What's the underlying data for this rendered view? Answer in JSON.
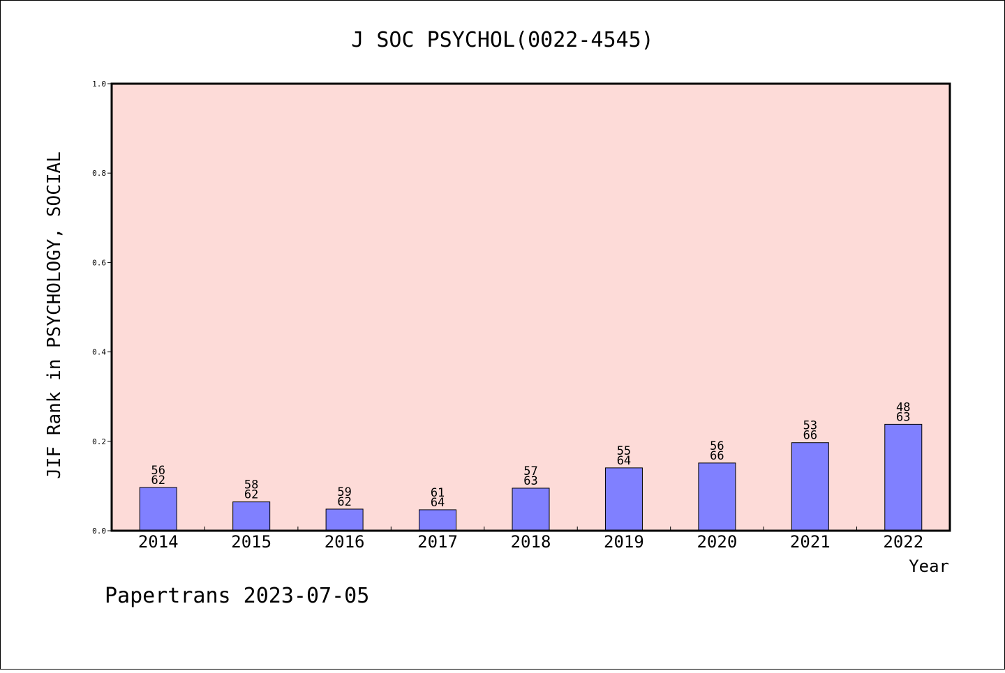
{
  "chart_data": {
    "type": "bar",
    "title": "J SOC PSYCHOL(0022-4545)",
    "xlabel": "Year",
    "ylabel": "JIF Rank in PSYCHOLOGY, SOCIAL",
    "ylim": [
      0,
      1.0
    ],
    "yticks": [
      "0.0",
      "0.2",
      "0.4",
      "0.6",
      "0.8",
      "1.0"
    ],
    "categories": [
      "2014",
      "2015",
      "2016",
      "2017",
      "2018",
      "2019",
      "2020",
      "2021",
      "2022"
    ],
    "values": [
      0.0968,
      0.0645,
      0.0484,
      0.0469,
      0.0952,
      0.1406,
      0.1515,
      0.197,
      0.2381
    ],
    "rank_labels": [
      "56",
      "58",
      "59",
      "61",
      "57",
      "55",
      "56",
      "53",
      "48"
    ],
    "total_labels": [
      "62",
      "62",
      "62",
      "64",
      "63",
      "64",
      "66",
      "66",
      "63"
    ],
    "grid": false,
    "legend": "none",
    "colors": {
      "plot_background": "#fddbd8",
      "bar_fill": "#8080ff",
      "bar_stroke": "#000000",
      "axis": "#000000"
    }
  },
  "footer": {
    "text": "Papertrans 2023-07-05"
  }
}
